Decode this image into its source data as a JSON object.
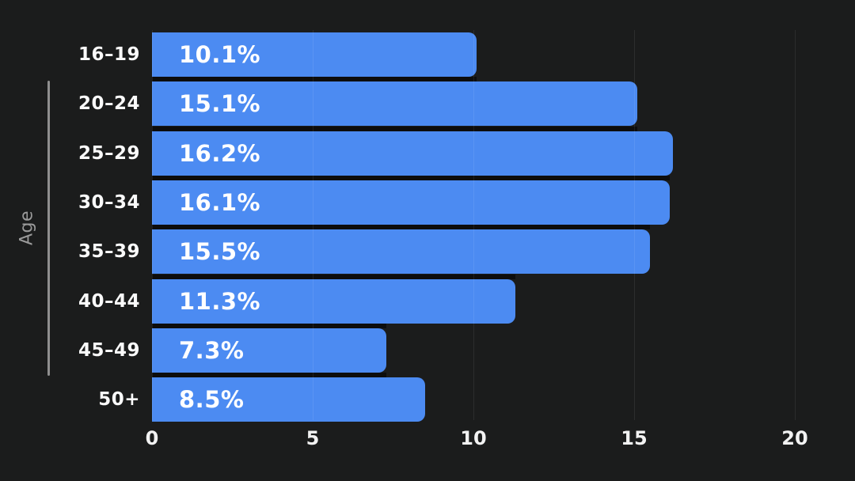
{
  "chart_data": {
    "type": "bar",
    "orientation": "horizontal",
    "title": "",
    "xlabel": "",
    "ylabel": "Age",
    "categories": [
      "16–19",
      "20–24",
      "25–29",
      "30–34",
      "35–39",
      "40–44",
      "45–49",
      "50+"
    ],
    "values": [
      10.1,
      15.1,
      16.2,
      16.1,
      15.5,
      11.3,
      7.3,
      8.5
    ],
    "value_labels": [
      "10.1%",
      "15.1%",
      "16.2%",
      "16.1%",
      "15.5%",
      "11.3%",
      "7.3%",
      "8.5%"
    ],
    "xlim": [
      0,
      20
    ],
    "xticks": [
      "0",
      "5",
      "10",
      "15",
      "20"
    ],
    "xtick_values": [
      0,
      5,
      10,
      15,
      20
    ],
    "grid": "vertical-at-xticks",
    "legend": "none",
    "colors": {
      "background": "#1b1c1c",
      "bar": "#4c8bf2",
      "bar_value_text": "#ffffff",
      "category_text": "#fafafa",
      "tick_text": "#f2f2f2",
      "axis_label_text": "#9a9a9a",
      "axis_bracket": "#8f8f8f",
      "gridline": "rgba(255,255,255,0.08)",
      "row_separator": "#0d0d0d"
    }
  }
}
